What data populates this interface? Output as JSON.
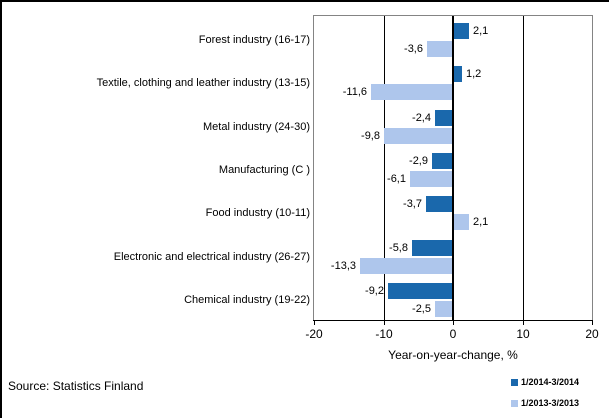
{
  "chart_data": {
    "type": "bar",
    "orientation": "horizontal",
    "title": "",
    "xlabel": "Year-on-year-change, %",
    "xlim": [
      -20,
      20
    ],
    "xtick_values": [
      -20,
      -10,
      0,
      10,
      20
    ],
    "xticks": [
      "-20",
      "-10",
      "0",
      "10",
      "20"
    ],
    "gridlines_at": [
      -10,
      10
    ],
    "legend_position": "bottom-right",
    "categories": [
      "Forest industry (16-17)",
      "Textile, clothing and leather industry (13-15)",
      "Metal industry (24-30)",
      "Manufacturing (C )",
      "Food industry (10-11)",
      "Electronic and electrical industry (26-27)",
      "Chemical industry (19-22)"
    ],
    "series": [
      {
        "name": "1/2014-3/2014",
        "color": "#1a68ac",
        "values": [
          2.1,
          1.2,
          -2.4,
          -2.9,
          -3.7,
          -5.8,
          -9.2
        ],
        "labels": [
          "2,1",
          "1,2",
          "-2,4",
          "-2,9",
          "-3,7",
          "-5,8",
          "-9,2"
        ]
      },
      {
        "name": "1/2013-3/2013",
        "color": "#aec6ec",
        "values": [
          -3.6,
          -11.6,
          -9.8,
          -6.1,
          2.1,
          -13.3,
          -2.5
        ],
        "labels": [
          "-3,6",
          "-11,6",
          "-9,8",
          "-6,1",
          "2,1",
          "-13,3",
          "-2,5"
        ]
      }
    ]
  },
  "source_note": "Source: Statistics Finland"
}
